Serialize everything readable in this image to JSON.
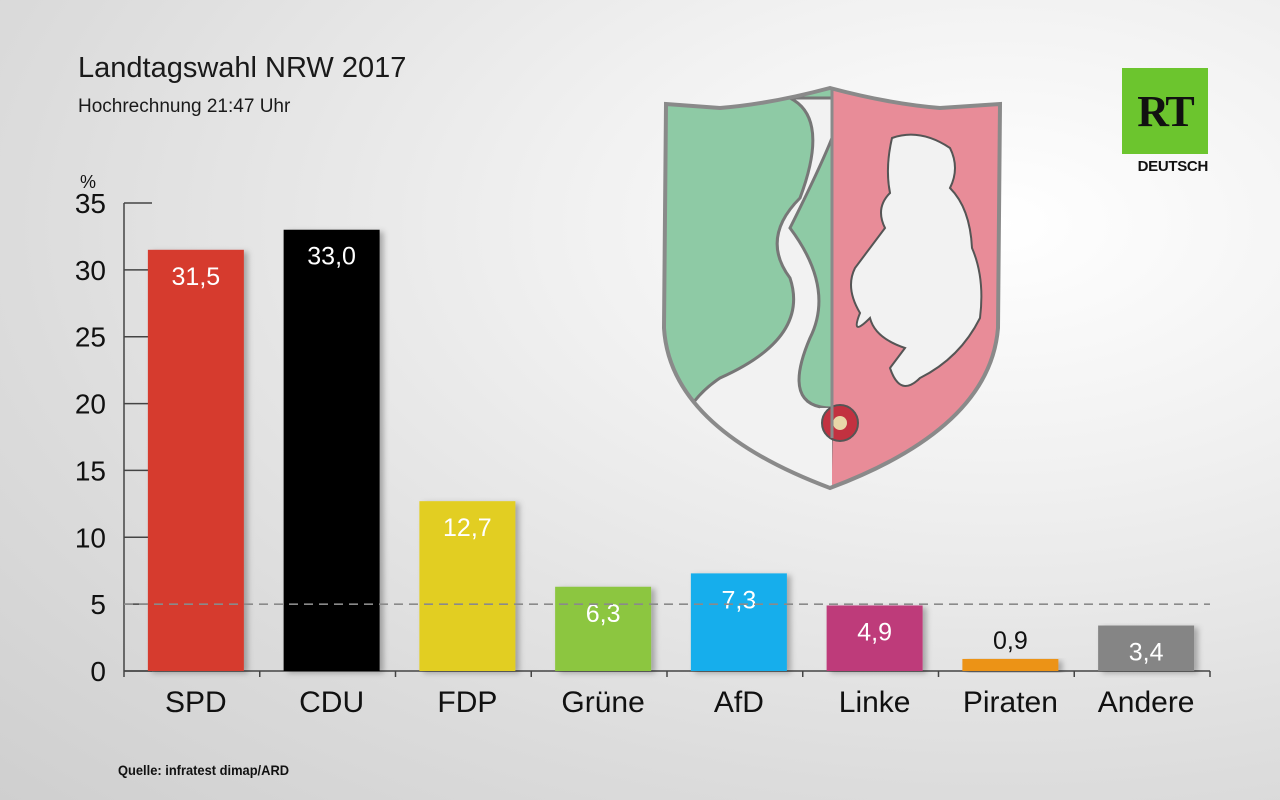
{
  "header": {
    "title": "Landtagswahl NRW 2017",
    "subtitle": "Hochrechnung 21:47 Uhr"
  },
  "footer": {
    "source": "Quelle: infratest dimap/ARD"
  },
  "logo": {
    "letters": "RT",
    "sub": "DEUTSCH",
    "color": "#6cc52e"
  },
  "crest": {
    "icon": "nrw-coat-of-arms-icon"
  },
  "chart_data": {
    "type": "bar",
    "ylabel": "%",
    "ylim": [
      0,
      35
    ],
    "yticks": [
      "0",
      "5",
      "10",
      "15",
      "20",
      "25",
      "30",
      "35"
    ],
    "threshold": 5,
    "grid": false,
    "categories": [
      "SPD",
      "CDU",
      "FDP",
      "Grüne",
      "AfD",
      "Linke",
      "Piraten",
      "Andere"
    ],
    "values": [
      31.5,
      33.0,
      12.7,
      6.3,
      7.3,
      4.9,
      0.9,
      3.4
    ],
    "value_labels": [
      "31,5",
      "33,0",
      "12,7",
      "6,3",
      "7,3",
      "4,9",
      "0,9",
      "3,4"
    ],
    "colors": [
      "#d63a2e",
      "#000000",
      "#e2ce22",
      "#8cc63f",
      "#14aeec",
      "#be3a7a",
      "#ec9318",
      "#858585"
    ]
  }
}
